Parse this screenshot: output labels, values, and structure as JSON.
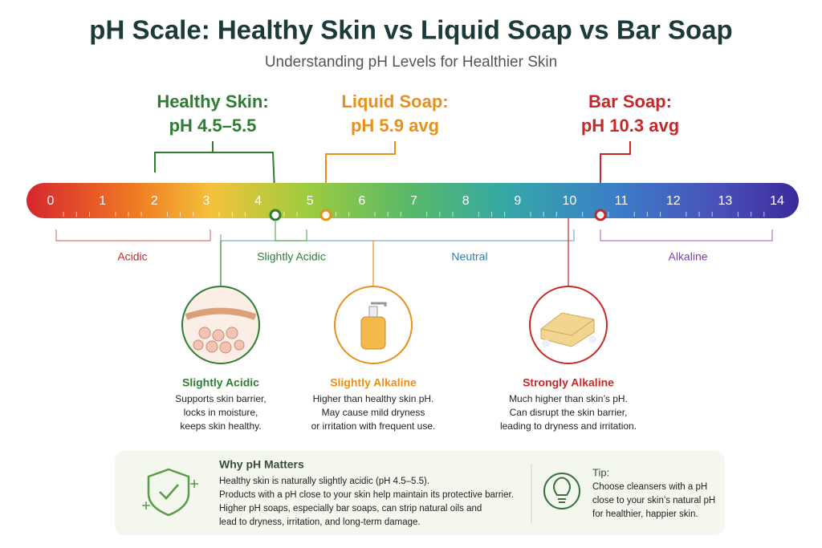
{
  "header": {
    "title": "pH Scale: Healthy Skin vs Liquid Soap vs Bar Soap",
    "subtitle": "Understanding pH Levels for Healthier Skin"
  },
  "callouts": [
    {
      "label": "Healthy Skin:",
      "value": "pH 4.5–5.5"
    },
    {
      "label": "Liquid Soap:",
      "value": "pH 5.9 avg"
    },
    {
      "label": "Bar Soap:",
      "value": "pH 10.3 avg"
    }
  ],
  "scale": {
    "ticks": [
      "0",
      "1",
      "2",
      "3",
      "4",
      "5",
      "6",
      "7",
      "8",
      "9",
      "10",
      "11",
      "12",
      "13",
      "14"
    ]
  },
  "ranges": [
    "Acidic",
    "Slightly Acidic",
    "Neutral",
    "Alkaline"
  ],
  "cards": [
    {
      "heading": "Slightly Acidic",
      "lines": [
        "Supports skin barrier,",
        "locks in moisture,",
        "keeps skin healthy."
      ]
    },
    {
      "heading": "Slightly Alkaline",
      "lines": [
        "Higher than healthy skin pH.",
        "May cause mild dryness",
        "or irritation with frequent use."
      ]
    },
    {
      "heading": "Strongly Alkaline",
      "lines": [
        "Much higher than skin’s pH.",
        "Can disrupt the skin barrier,",
        "leading to dryness and irritation."
      ]
    }
  ],
  "footer": {
    "why": {
      "title": "Why pH Matters",
      "lines": [
        "Healthy skin is naturally slightly acidic (pH 4.5–5.5).",
        "Products with a pH close to your skin help maintain its protective barrier.",
        "Higher pH soaps, especially bar soaps, can strip natural oils and",
        "lead to dryness, irritation, and long-term damage."
      ]
    },
    "tip": {
      "title": "Tip:",
      "lines": [
        "Choose cleansers with a pH",
        "close to your skin’s natural pH",
        "for healthier, happier skin."
      ]
    }
  }
}
